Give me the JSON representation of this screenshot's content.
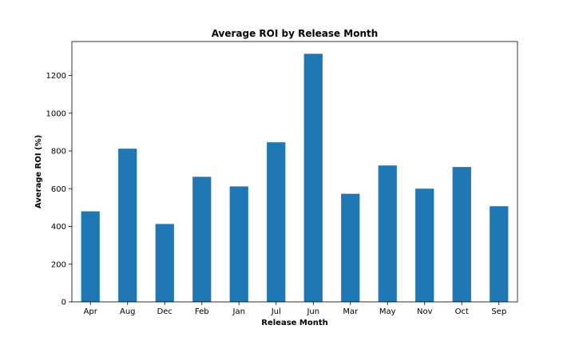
{
  "chart_data": {
    "type": "bar",
    "title": "Average ROI by Release Month",
    "xlabel": "Release Month",
    "ylabel": "Average ROI (%)",
    "categories": [
      "Apr",
      "Aug",
      "Dec",
      "Feb",
      "Jan",
      "Jul",
      "Jun",
      "Mar",
      "May",
      "Nov",
      "Oct",
      "Sep"
    ],
    "values": [
      480,
      812,
      413,
      663,
      612,
      846,
      1315,
      573,
      723,
      600,
      715,
      507
    ],
    "ylim": [
      0,
      1380
    ],
    "yticks": [
      0,
      200,
      400,
      600,
      800,
      1000,
      1200
    ],
    "grid": false,
    "legend": "none",
    "bar_color": "#1f77b4"
  }
}
